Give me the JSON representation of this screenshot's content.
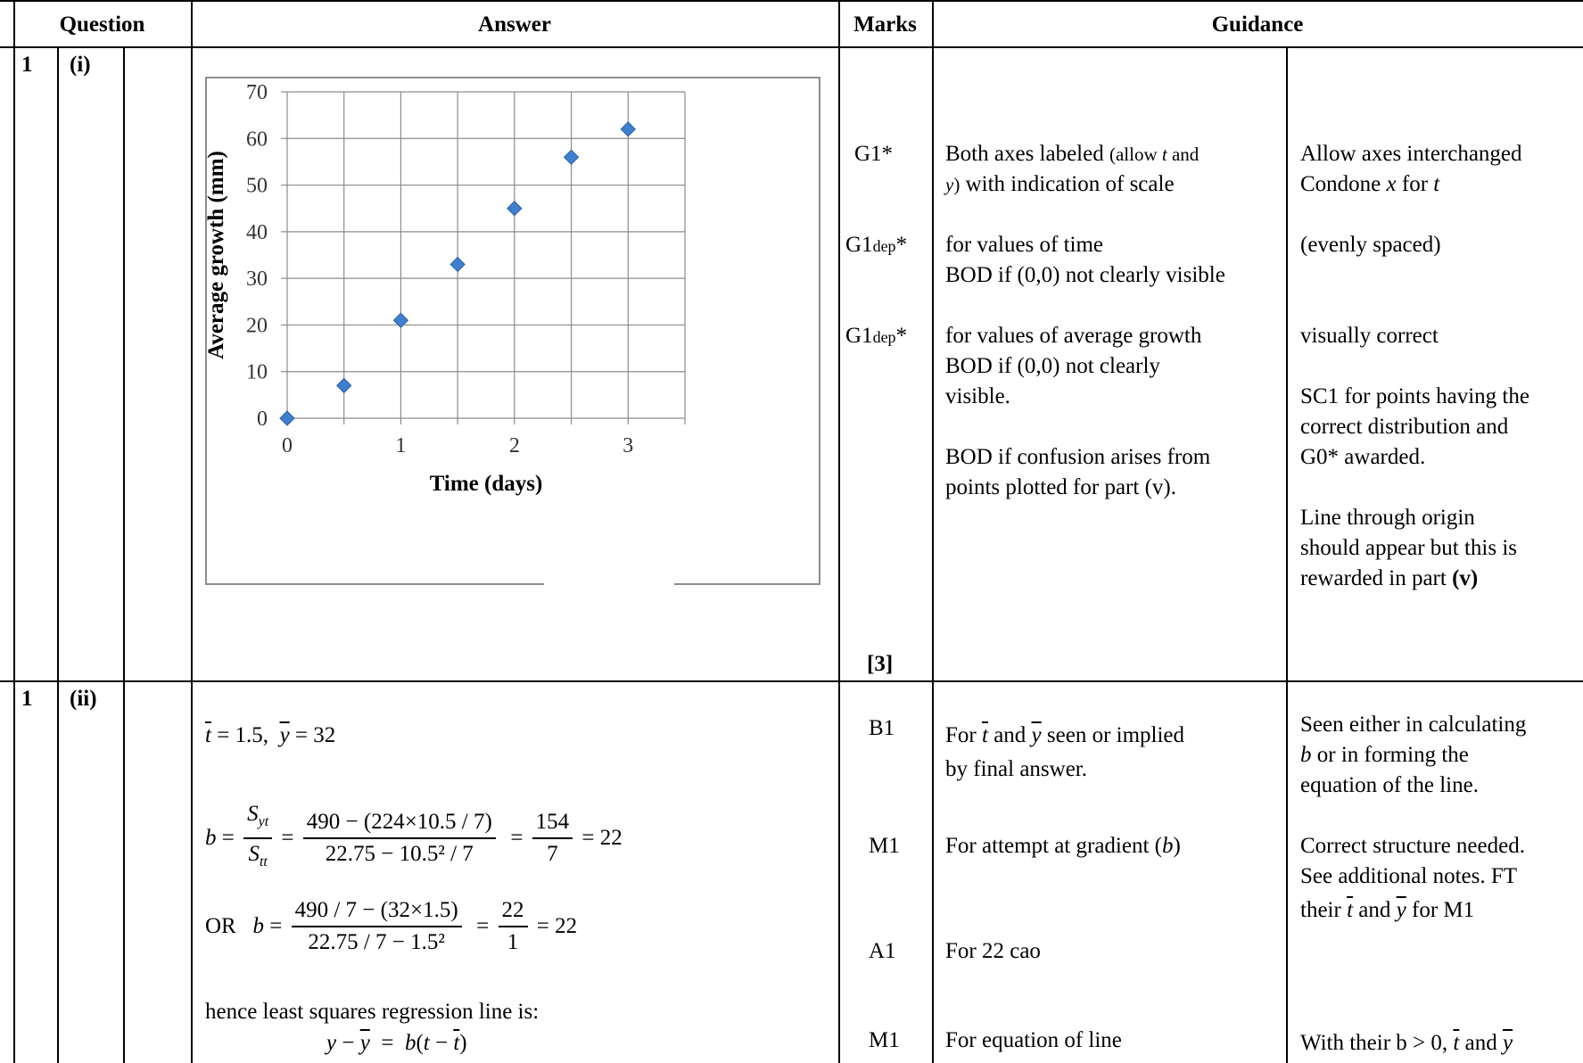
{
  "headers": {
    "question": "Question",
    "answer": "Answer",
    "marks": "Marks",
    "guidance": "Guidance"
  },
  "q1i": {
    "num": "1",
    "part": "(i)",
    "marks": [
      "G1*",
      "G1dep*",
      "G1dep*",
      "[3]"
    ],
    "guidance": [
      "Both axes labeled (allow t and y) with indication of scale",
      "for values of time",
      "BOD if (0,0) not clearly visible",
      "for values of average growth",
      "BOD if (0,0) not clearly visible.",
      "BOD if confusion arises from points plotted for part (v)."
    ],
    "notes": [
      "Allow axes interchanged",
      "Condone x for t",
      "(evenly spaced)",
      "visually correct",
      "SC1 for points having the correct distribution and G0* awarded.",
      "Line through origin should appear but this is rewarded in part (v)"
    ]
  },
  "chart_data": {
    "type": "scatter",
    "x": [
      0,
      0.5,
      1,
      1.5,
      2,
      2.5,
      3
    ],
    "y": [
      0,
      7,
      21,
      33,
      45,
      56,
      62
    ],
    "xlabel": "Time (days)",
    "ylabel": "Average growth (mm)",
    "xlim": [
      0,
      3.5
    ],
    "ylim": [
      0,
      70
    ],
    "xticks": [
      "0",
      "1",
      "2",
      "3"
    ],
    "yticks": [
      "0",
      "10",
      "20",
      "30",
      "40",
      "50",
      "60",
      "70"
    ],
    "grid": true,
    "marker_color": "#3f7fd0"
  },
  "q1ii": {
    "num": "1",
    "part": "(ii)",
    "means": "= 1.5,",
    "means2": "= 32",
    "b_num": "490 − (224×10.5 / 7)",
    "b_den": "22.75 − 10.5² / 7",
    "b_frac_num": "154",
    "b_frac_den": "7",
    "b_val": "= 22",
    "or": "OR",
    "b2_num": "490 / 7 − (32×1.5)",
    "b2_den": "22.75 / 7 − 1.5²",
    "b2_frac_num": "22",
    "b2_frac_den": "1",
    "hence": "hence least squares regression line is:",
    "marks": [
      "B1",
      "M1",
      "A1",
      "M1"
    ],
    "guidance": [
      "seen or implied",
      "by final answer.",
      "For attempt at gradient",
      "For 22 cao",
      "For equation of line"
    ],
    "notes": [
      "Seen either in calculating",
      "or in forming the",
      "equation of the line.",
      "Correct structure needed.",
      "See additional notes. FT",
      "for M1",
      "With their b > 0,"
    ]
  }
}
